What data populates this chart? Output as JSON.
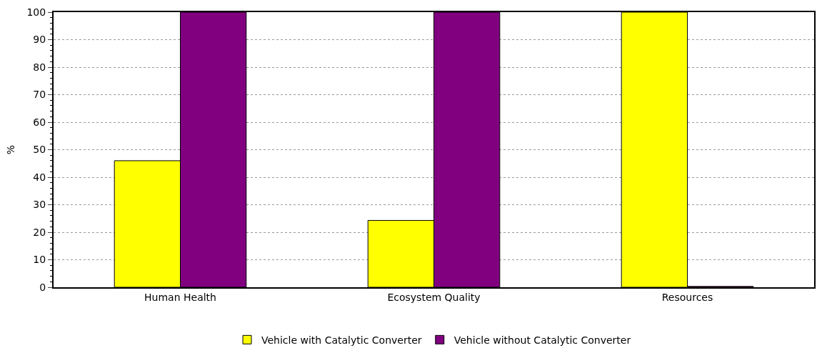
{
  "chart_data": {
    "type": "bar",
    "ylabel": "%",
    "categories": [
      "Human Health",
      "Ecosystem Quality",
      "Resources"
    ],
    "series": [
      {
        "name": "Vehicle with Catalytic Converter",
        "color": "#ffff00",
        "values": [
          46,
          24.3,
          100
        ]
      },
      {
        "name": "Vehicle without Catalytic Converter",
        "color": "#800080",
        "values": [
          100,
          100,
          0.3
        ]
      }
    ],
    "ylim": [
      0,
      100
    ],
    "yticks": [
      0,
      10,
      20,
      30,
      40,
      50,
      60,
      70,
      80,
      90,
      100
    ],
    "grid": "y",
    "legend": "bottom"
  }
}
